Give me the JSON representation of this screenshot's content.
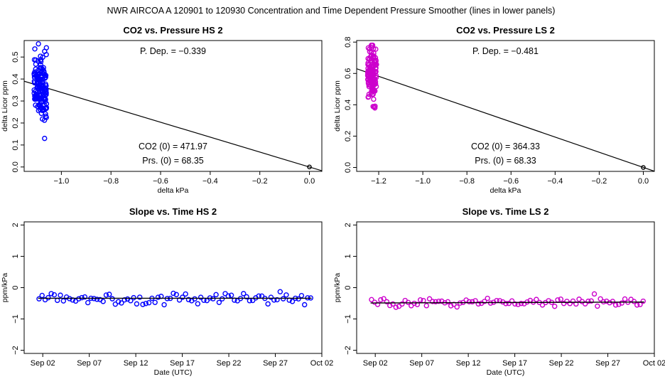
{
  "main_title": "NWR   AIRCOA A   120901 to 120930   Concentration and Time Dependent Pressure Smoother (lines in lower panels)",
  "chart_data": [
    {
      "id": "hs-scatter",
      "type": "scatter",
      "title": "CO2 vs. Pressure HS 2",
      "xlabel": "delta kPa",
      "ylabel": "delta Licor ppm",
      "xlim": [
        -1.15,
        0.05
      ],
      "ylim": [
        -0.02,
        0.575
      ],
      "xticks": [
        -1.0,
        -0.8,
        -0.6,
        -0.4,
        -0.2,
        0.0
      ],
      "xtick_labels": [
        "−1.0",
        "−0.8",
        "−0.6",
        "−0.4",
        "−0.2",
        "0.0"
      ],
      "yticks": [
        0.0,
        0.1,
        0.2,
        0.3,
        0.4,
        0.5
      ],
      "ytick_labels": [
        "0.0",
        "0.1",
        "0.2",
        "0.3",
        "0.4",
        "0.5"
      ],
      "color": "#0000ff",
      "fit_line": {
        "x": [
          -1.15,
          0.05
        ],
        "y": [
          0.39,
          -0.017
        ]
      },
      "origin_point": [
        0.0,
        0.0
      ],
      "cluster": {
        "x_center": -1.085,
        "x_spread": 0.025,
        "y_min": 0.13,
        "y_max": 0.56,
        "y_mean": 0.375,
        "y_sd": 0.07,
        "count": 150,
        "seed": 11
      },
      "annotations": {
        "p_dep": "P. Dep. =  −0.339",
        "co2_0": "CO2 (0) =  471.97",
        "prs_0": "Prs. (0) =  68.35"
      }
    },
    {
      "id": "ls-scatter",
      "type": "scatter",
      "title": "CO2 vs. Pressure LS 2",
      "xlabel": "delta kPa",
      "ylabel": "delta Licor ppm",
      "xlim": [
        -1.3,
        0.05
      ],
      "ylim": [
        -0.025,
        0.81
      ],
      "xticks": [
        -1.2,
        -1.0,
        -0.8,
        -0.6,
        -0.4,
        -0.2,
        0.0
      ],
      "xtick_labels": [
        "−1.2",
        "−1.0",
        "−0.8",
        "−0.6",
        "−0.4",
        "−0.2",
        "0.0"
      ],
      "yticks": [
        0.0,
        0.2,
        0.4,
        0.6,
        0.8
      ],
      "ytick_labels": [
        "0.0",
        "0.2",
        "0.4",
        "0.6",
        "0.8"
      ],
      "color": "#cc00cc",
      "fit_line": {
        "x": [
          -1.3,
          0.05
        ],
        "y": [
          0.63,
          -0.024
        ]
      },
      "origin_point": [
        0.0,
        0.0
      ],
      "cluster": {
        "x_center": -1.23,
        "x_spread": 0.02,
        "y_min": 0.38,
        "y_max": 0.78,
        "y_mean": 0.59,
        "y_sd": 0.08,
        "count": 150,
        "seed": 23
      },
      "annotations": {
        "p_dep": "P. Dep. =  −0.481",
        "co2_0": "CO2 (0) =  364.33",
        "prs_0": "Prs. (0) =  68.33"
      }
    },
    {
      "id": "hs-time",
      "type": "scatter",
      "title": "Slope vs. Time HS 2",
      "xlabel": "Date (UTC)",
      "ylabel": "ppm/kPa",
      "xlim": [
        -1.0,
        31.0
      ],
      "ylim": [
        -2.1,
        2.1
      ],
      "xticks": [
        1,
        6,
        11,
        16,
        21,
        26,
        31
      ],
      "xtick_labels": [
        "Sep 02",
        "Sep 07",
        "Sep 12",
        "Sep 17",
        "Sep 22",
        "Sep 27",
        "Oct 02"
      ],
      "yticks": [
        -2,
        -1,
        0,
        1,
        2
      ],
      "ytick_labels": [
        "−2",
        "−1",
        "0",
        "1",
        "2"
      ],
      "color": "#0000ff",
      "smoother": {
        "x": [
          0.5,
          29.9
        ],
        "y": [
          -0.34,
          -0.34
        ]
      },
      "series": {
        "x_start": 0.6,
        "x_end": 29.8,
        "count": 90,
        "mean": -0.34,
        "sd": 0.09,
        "seed": 5
      }
    },
    {
      "id": "ls-time",
      "type": "scatter",
      "title": "Slope vs. Time LS 2",
      "xlabel": "Date (UTC)",
      "ylabel": "ppm/kPa",
      "xlim": [
        -1.0,
        31.0
      ],
      "ylim": [
        -2.1,
        2.1
      ],
      "xticks": [
        1,
        6,
        11,
        16,
        21,
        26,
        31
      ],
      "xtick_labels": [
        "Sep 02",
        "Sep 07",
        "Sep 12",
        "Sep 17",
        "Sep 22",
        "Sep 27",
        "Oct 02"
      ],
      "yticks": [
        -2,
        -1,
        0,
        1,
        2
      ],
      "ytick_labels": [
        "−2",
        "−1",
        "0",
        "1",
        "2"
      ],
      "color": "#cc00cc",
      "smoother": {
        "x": [
          0.5,
          29.9
        ],
        "y": [
          -0.49,
          -0.46
        ]
      },
      "series": {
        "x_start": 0.6,
        "x_end": 29.8,
        "count": 90,
        "mean": -0.48,
        "sd": 0.07,
        "seed": 9
      }
    }
  ]
}
